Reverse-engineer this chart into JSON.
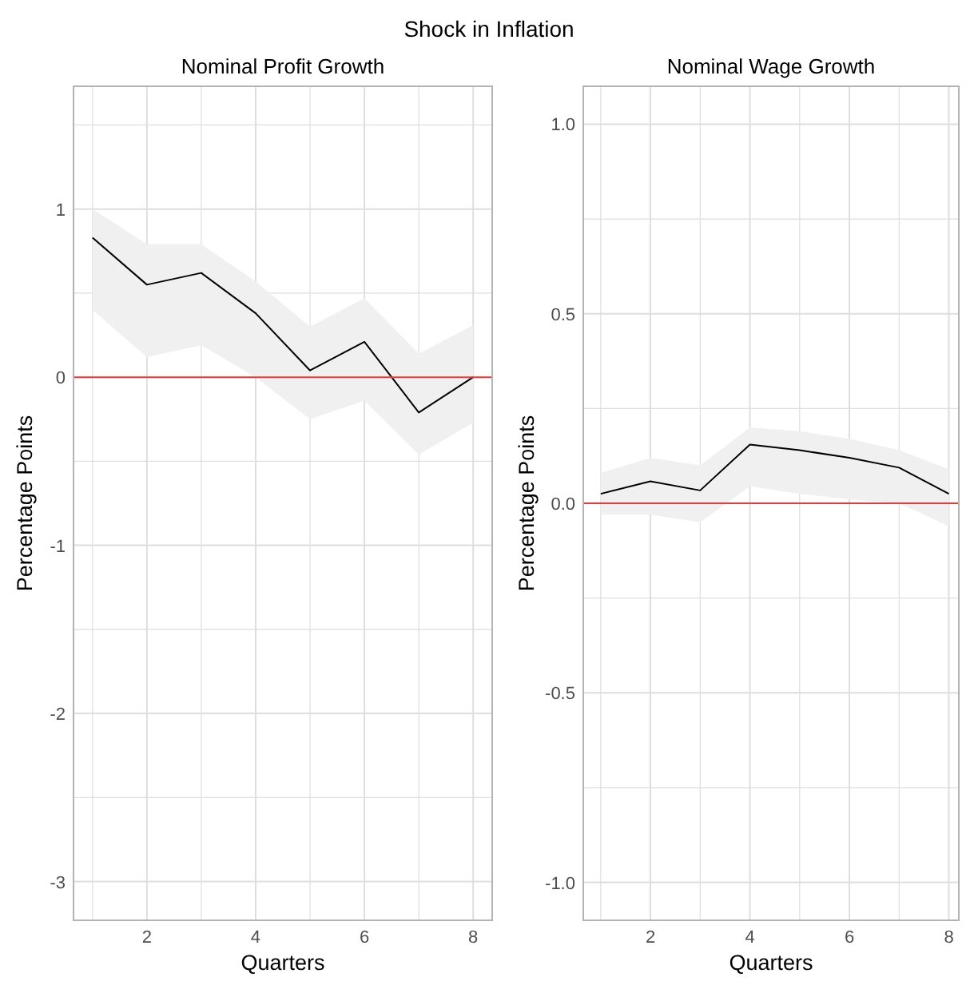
{
  "chart_data": [
    {
      "type": "line",
      "title": "Nominal Profit Growth",
      "xlabel": "Quarters",
      "ylabel": "Percentage Points",
      "annotations": [
        "Shock in Inflation"
      ],
      "x": [
        1,
        2,
        3,
        4,
        5,
        6,
        7,
        8
      ],
      "series": [
        {
          "color": "#000000",
          "values": [
            0.83,
            0.55,
            0.62,
            0.38,
            0.04,
            0.21,
            -0.21,
            0.0
          ],
          "lower": [
            0.4,
            0.12,
            0.19,
            0.0,
            -0.25,
            -0.14,
            -0.46,
            -0.27
          ],
          "upper": [
            1.0,
            0.79,
            0.79,
            0.57,
            0.3,
            0.47,
            0.14,
            0.31
          ]
        }
      ],
      "xlim": [
        0.65,
        8.35
      ],
      "ylim": [
        -3.23,
        1.73
      ],
      "xticks": [
        {
          "value": 1,
          "label": null
        },
        2,
        {
          "value": 3,
          "label": null
        },
        4,
        {
          "value": 5,
          "label": null
        },
        6,
        {
          "value": 7,
          "label": null
        },
        8
      ],
      "yticks": [
        -3,
        {
          "value": -2.5,
          "label": null
        },
        -2,
        {
          "value": -1.5,
          "label": null
        },
        -1,
        {
          "value": -0.5,
          "label": null
        },
        0,
        {
          "value": 0.5,
          "label": null
        },
        1,
        {
          "value": 1.5,
          "label": null
        }
      ],
      "ref_lines": [
        {
          "axis": "y",
          "value": 0,
          "color": "#e8393b"
        }
      ],
      "grid": true
    },
    {
      "type": "line",
      "title": "Nominal Wage Growth",
      "xlabel": "Quarters",
      "ylabel": "Percentage Points",
      "x": [
        1,
        2,
        3,
        4,
        5,
        6,
        7,
        8
      ],
      "series": [
        {
          "color": "#000000",
          "values": [
            0.025,
            0.058,
            0.034,
            0.155,
            0.14,
            0.12,
            0.094,
            0.025
          ],
          "lower": [
            -0.03,
            -0.03,
            -0.05,
            0.045,
            0.025,
            0.01,
            0.0,
            -0.06
          ],
          "upper": [
            0.08,
            0.12,
            0.1,
            0.2,
            0.19,
            0.17,
            0.14,
            0.09
          ]
        }
      ],
      "xlim": [
        0.65,
        8.2
      ],
      "ylim": [
        -1.1,
        1.1
      ],
      "xticks": [
        {
          "value": 1,
          "label": null
        },
        2,
        {
          "value": 3,
          "label": null
        },
        4,
        {
          "value": 5,
          "label": null
        },
        6,
        {
          "value": 7,
          "label": null
        },
        8
      ],
      "yticks": [
        {
          "value": -1,
          "label": "-1.0"
        },
        {
          "value": -0.75,
          "label": null
        },
        {
          "value": -0.5,
          "label": "-0.5"
        },
        {
          "value": -0.25,
          "label": null
        },
        {
          "value": 0,
          "label": "0.0"
        },
        {
          "value": 0.25,
          "label": null
        },
        {
          "value": 0.5,
          "label": "0.5"
        },
        {
          "value": 0.75,
          "label": null
        },
        {
          "value": 1,
          "label": "1.0"
        }
      ],
      "ref_lines": [
        {
          "axis": "y",
          "value": 0,
          "color": "#e8393b"
        }
      ],
      "grid": true
    }
  ]
}
